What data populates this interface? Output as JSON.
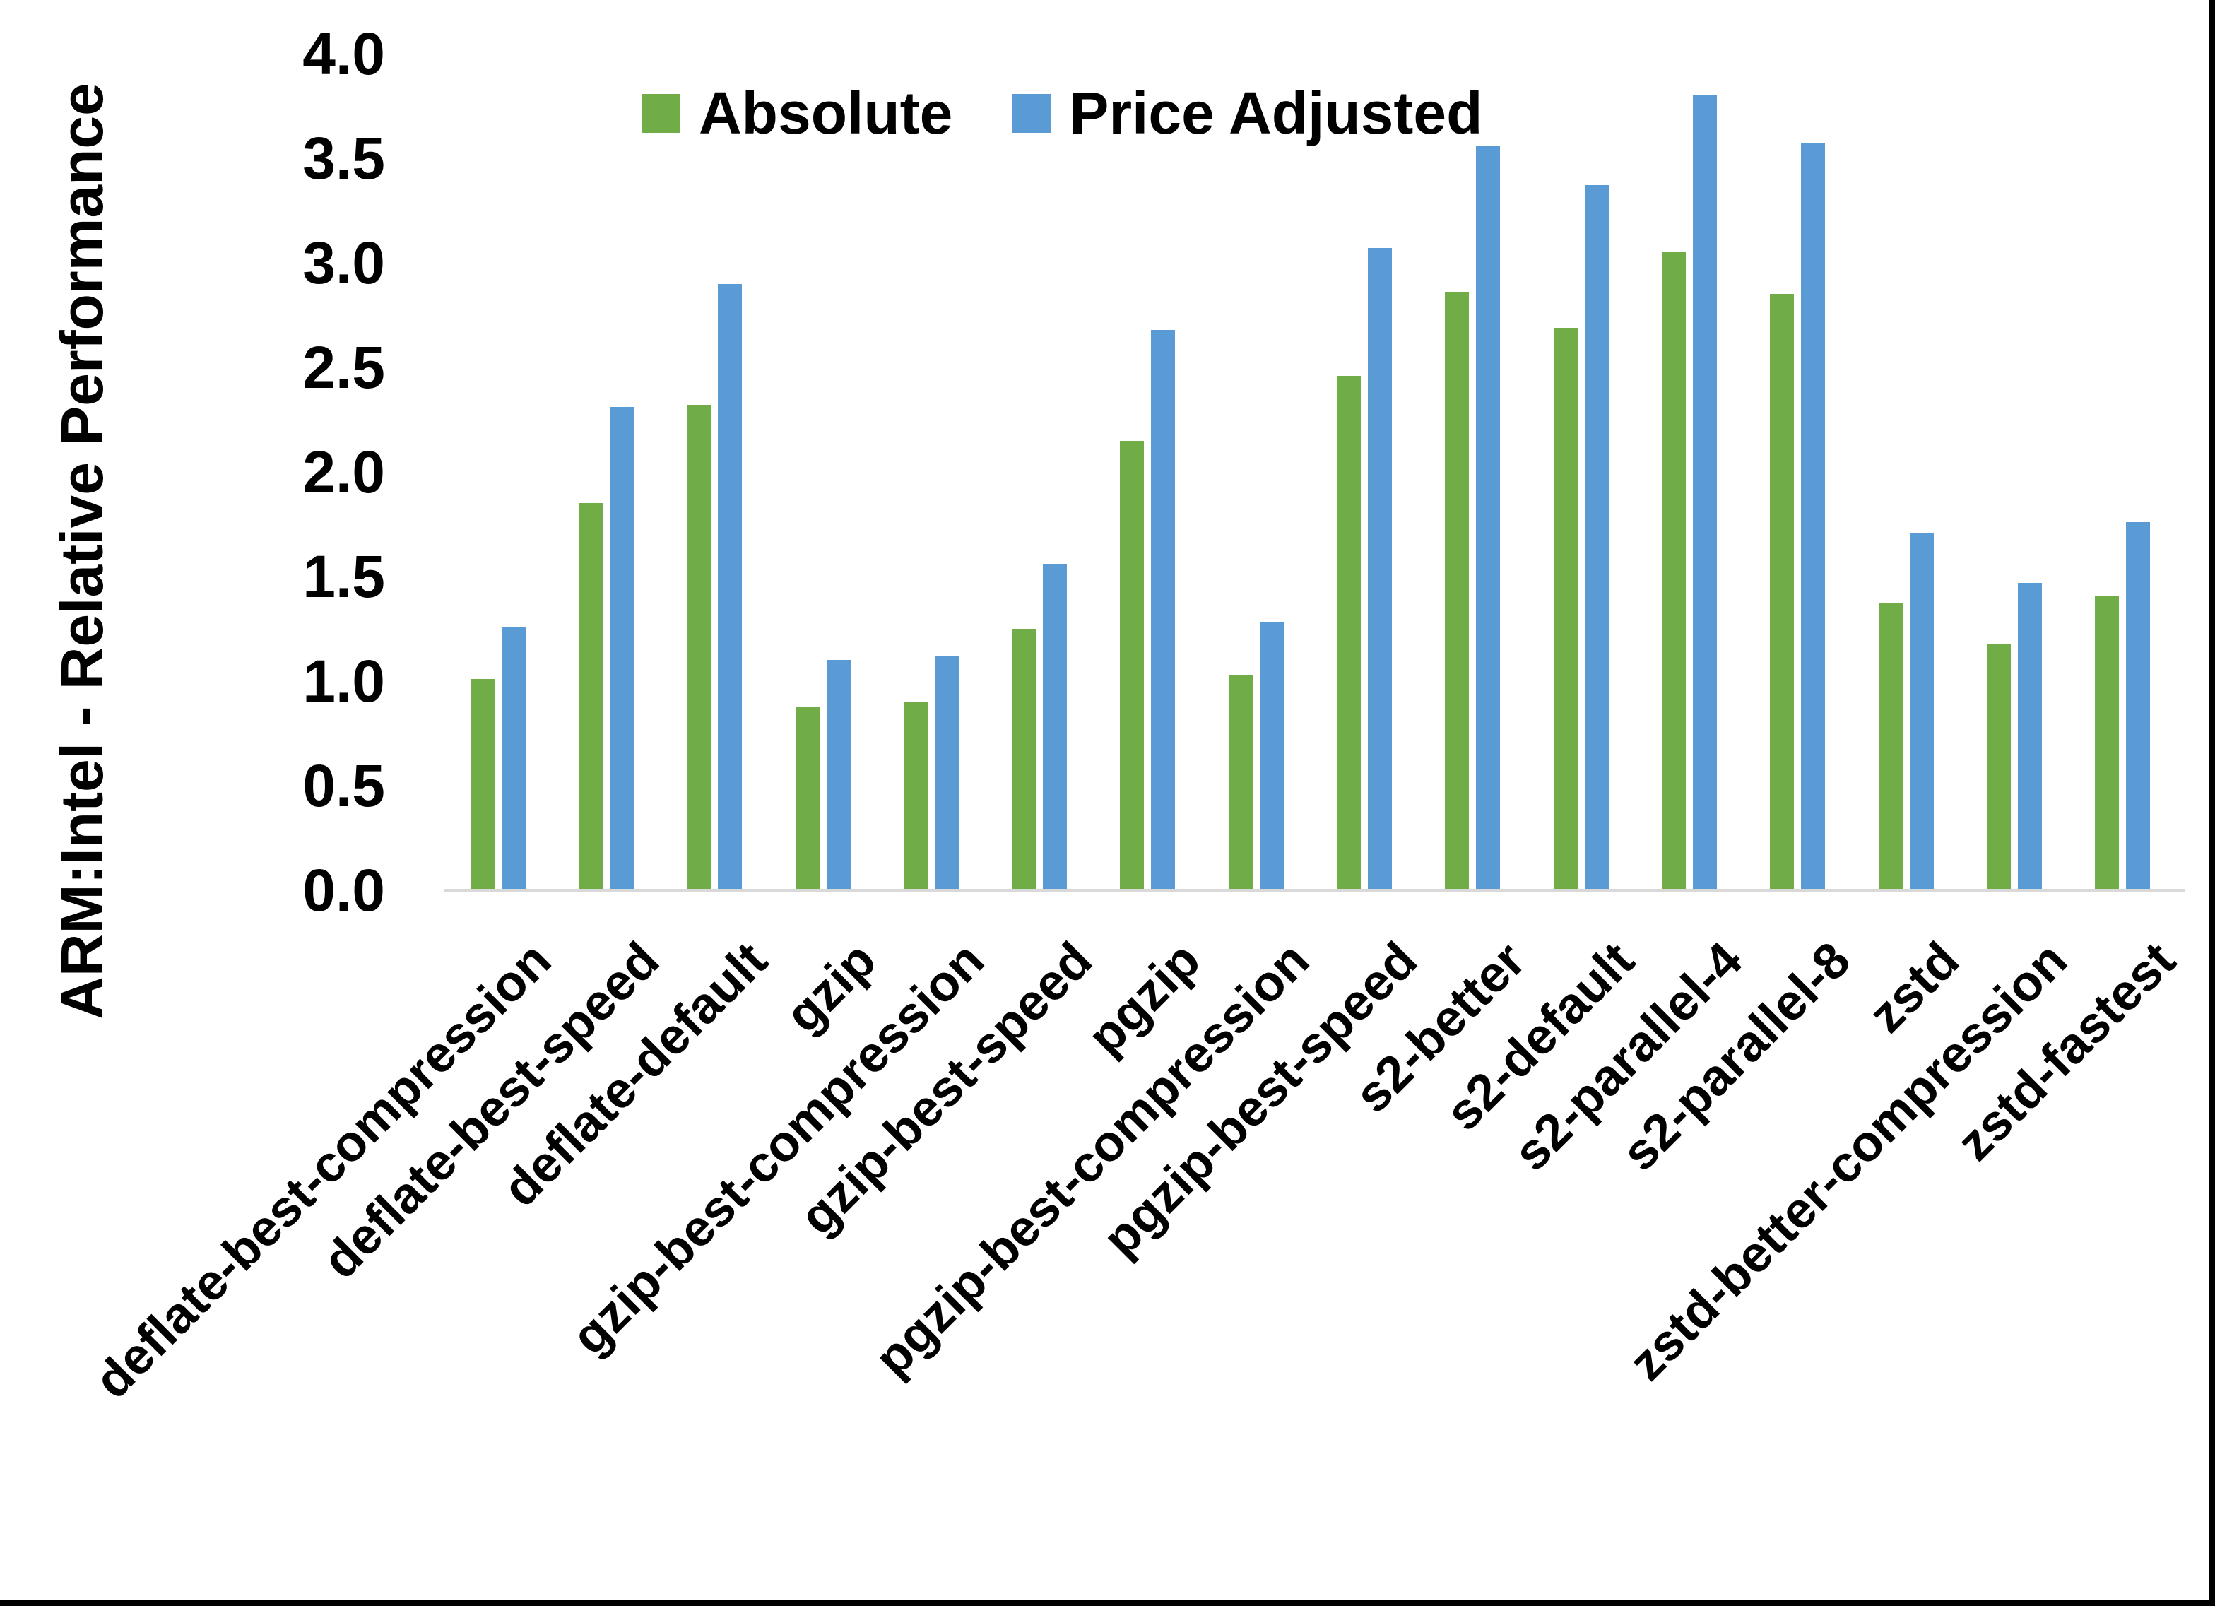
{
  "chart_data": {
    "type": "bar",
    "title": "",
    "ylabel": "ARM:Intel - Relative Performance",
    "xlabel": "",
    "ylim": [
      0.0,
      4.0
    ],
    "ytick_step": 0.5,
    "yticks": [
      "0.0",
      "0.5",
      "1.0",
      "1.5",
      "2.0",
      "2.5",
      "3.0",
      "3.5",
      "4.0"
    ],
    "grid": false,
    "legend_position": "top",
    "background_color": "#FFFFFF",
    "baseline_color": "#D9D9D9",
    "categories": [
      "deflate-best-compression",
      "deflate-best-speed",
      "deflate-default",
      "gzip",
      "gzip-best-compression",
      "gzip-best-speed",
      "pgzip",
      "pgzip-best-compression",
      "pgzip-best-speed",
      "s2-better",
      "s2-default",
      "s2-parallel-4",
      "s2-parallel-8",
      "zstd",
      "zstd-better-compression",
      "zstd-fastest"
    ],
    "series": [
      {
        "name": "Absolute",
        "color": "#70AD47",
        "values": [
          1.01,
          1.85,
          2.32,
          0.88,
          0.9,
          1.25,
          2.15,
          1.03,
          2.46,
          2.86,
          2.69,
          3.05,
          2.85,
          1.37,
          1.18,
          1.41
        ]
      },
      {
        "name": "Price Adjusted",
        "color": "#5B9BD5",
        "values": [
          1.26,
          2.31,
          2.9,
          1.1,
          1.12,
          1.56,
          2.68,
          1.28,
          3.07,
          3.56,
          3.37,
          3.8,
          3.57,
          1.71,
          1.47,
          1.76
        ]
      }
    ]
  }
}
